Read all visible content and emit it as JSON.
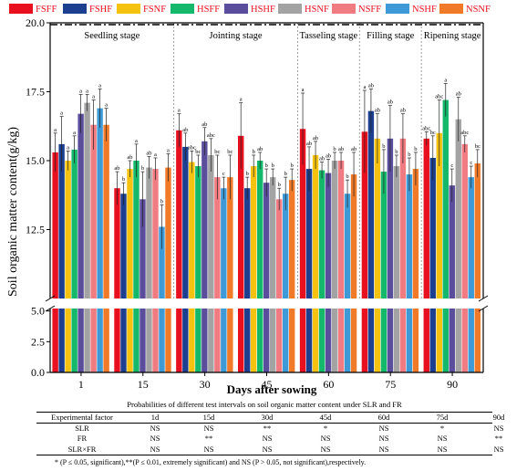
{
  "chart_data": {
    "type": "bar",
    "ylabel": "Soil organic matter content(g/kg)",
    "xlabel": "Days after sowing",
    "yticks": [
      "0.0",
      "2.5",
      "5.0",
      "12.5",
      "15.0",
      "17.5",
      "20.0"
    ],
    "y_break": [
      5.2,
      10
    ],
    "ylim_upper": [
      10,
      20
    ],
    "ylim_lower": [
      0,
      5.2
    ],
    "categories": [
      "1",
      "15",
      "30",
      "45",
      "60",
      "75",
      "90"
    ],
    "stages": [
      "Seedling stage",
      "Jointing stage",
      "Tasseling stage",
      "Filling stage",
      "Ripening stage"
    ],
    "stage_bounds": [
      [
        0,
        1
      ],
      [
        2,
        3
      ],
      [
        4,
        4
      ],
      [
        5,
        5
      ],
      [
        6,
        6
      ]
    ],
    "series": [
      {
        "name": "FSFF",
        "color": "#e8101e",
        "values": [
          15.3,
          14.0,
          16.1,
          15.9,
          16.15,
          16.05,
          15.8
        ],
        "err": [
          0.7,
          0.6,
          0.6,
          1.2,
          1.3,
          1.5,
          0.25
        ],
        "sig": [
          "a",
          "ab",
          "a",
          "a",
          "a",
          "a",
          "abc"
        ]
      },
      {
        "name": "FSHF",
        "color": "#1d3f8f",
        "values": [
          15.6,
          13.8,
          15.5,
          14.0,
          14.7,
          16.8,
          15.1
        ],
        "err": [
          1.0,
          0.4,
          0.5,
          0.4,
          0.8,
          0.8,
          0.8
        ],
        "sig": [
          "a",
          "b",
          "ab",
          "b",
          "ab",
          "ab",
          "bc"
        ]
      },
      {
        "name": "FSNF",
        "color": "#f5c20f",
        "values": [
          15.0,
          14.7,
          14.95,
          14.8,
          15.2,
          15.8,
          16.0
        ],
        "err": [
          0.35,
          0.3,
          0.4,
          0.4,
          0.5,
          0.9,
          1.2
        ],
        "sig": [
          "a",
          "ab",
          "abc",
          "b",
          "ab",
          "ab",
          "abc"
        ]
      },
      {
        "name": "HSFF",
        "color": "#14b86a",
        "values": [
          15.4,
          15.0,
          14.8,
          15.0,
          14.65,
          14.6,
          17.2
        ],
        "err": [
          0.5,
          0.6,
          0.4,
          0.3,
          0.3,
          0.8,
          0.6
        ],
        "sig": [
          "a",
          "a",
          "bc",
          "ab",
          "ab",
          "b",
          "a"
        ]
      },
      {
        "name": "HSHF",
        "color": "#5a4e9c",
        "values": [
          16.7,
          13.6,
          15.7,
          14.2,
          14.55,
          15.8,
          14.1
        ],
        "err": [
          0.7,
          1.0,
          0.5,
          0.5,
          0.5,
          1.2,
          0.6
        ],
        "sig": [
          "a",
          "b",
          "ab",
          "b",
          "ab",
          "ab",
          "c"
        ]
      },
      {
        "name": "HSNF",
        "color": "#a3a3a3",
        "values": [
          17.1,
          14.75,
          15.2,
          14.4,
          15.0,
          14.8,
          16.5
        ],
        "err": [
          0.3,
          0.4,
          0.6,
          0.3,
          0.3,
          0.4,
          0.8
        ],
        "sig": [
          "a",
          "ab",
          "abc",
          "b",
          "b",
          "b",
          "ab"
        ]
      },
      {
        "name": "NSFF",
        "color": "#f07c82",
        "values": [
          16.3,
          14.7,
          14.4,
          13.6,
          15.0,
          15.8,
          15.6
        ],
        "err": [
          0.9,
          0.4,
          0.8,
          0.4,
          0.3,
          0.9,
          0.3
        ],
        "sig": [
          "a",
          "a",
          "bc",
          "b",
          "ab",
          "ab",
          "abc"
        ]
      },
      {
        "name": "NSHF",
        "color": "#3d9ad6",
        "values": [
          16.9,
          12.6,
          14.0,
          13.8,
          13.8,
          14.5,
          14.4
        ],
        "err": [
          0.7,
          0.8,
          0.4,
          0.6,
          0.5,
          0.6,
          0.4
        ],
        "sig": [
          "a",
          "b",
          "c",
          "b",
          "b",
          "b",
          "c"
        ]
      },
      {
        "name": "NSNF",
        "color": "#f07a28",
        "values": [
          16.3,
          14.75,
          14.4,
          14.3,
          14.5,
          14.7,
          14.9
        ],
        "err": [
          0.6,
          0.5,
          0.8,
          0.4,
          0.8,
          0.6,
          0.5
        ],
        "sig": [
          "a",
          "a",
          "bc",
          "b",
          "ab",
          "b",
          "bc"
        ]
      }
    ]
  },
  "table": {
    "title": "Probabilities of different test intervals on soil organic matter content under SLR and FR",
    "headers": [
      "Experimental factor",
      "1d",
      "15d",
      "30d",
      "45d",
      "60d",
      "75d",
      "90d"
    ],
    "rows": [
      [
        "SLR",
        "NS",
        "NS",
        "**",
        "*",
        "NS",
        "*",
        "NS"
      ],
      [
        "FR",
        "NS",
        "**",
        "NS",
        "NS",
        "NS",
        "NS",
        "**"
      ],
      [
        "SLR×FR",
        "NS",
        "NS",
        "NS",
        "NS",
        "NS",
        "NS",
        "NS"
      ]
    ],
    "note": "* (P ≤ 0.05, significant),**(P ≤ 0.01, extremely significant) and NS (P > 0.05, not significant),respectively."
  }
}
